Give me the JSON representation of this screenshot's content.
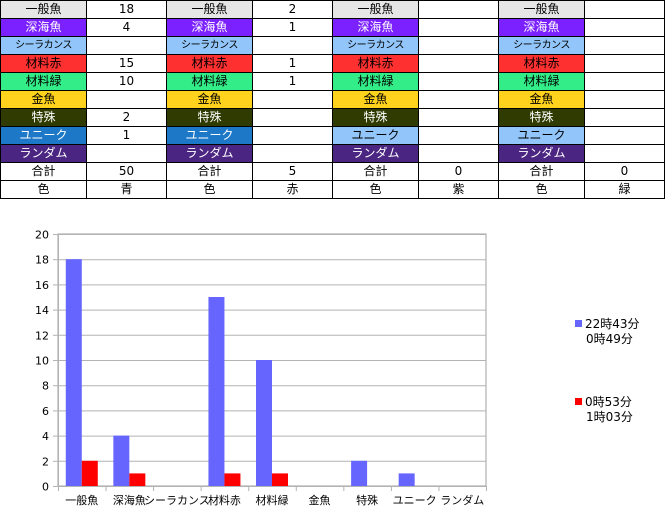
{
  "table": {
    "groups": [
      {
        "rows": [
          {
            "label": "一般魚",
            "value": "18",
            "bg": "#e6e6e6",
            "fg": "#000000"
          },
          {
            "label": "深海魚",
            "value": "4",
            "bg": "#7b21ff",
            "fg": "#ffffff"
          },
          {
            "label": "シーラカンス",
            "value": "",
            "bg": "#92c5f9",
            "fg": "#000000"
          },
          {
            "label": "材料赤",
            "value": "15",
            "bg": "#ff3030",
            "fg": "#000000"
          },
          {
            "label": "材料緑",
            "value": "10",
            "bg": "#33ee88",
            "fg": "#000000"
          },
          {
            "label": "金魚",
            "value": "",
            "bg": "#ffd21e",
            "fg": "#000000"
          },
          {
            "label": "特殊",
            "value": "2",
            "bg": "#2f3b00",
            "fg": "#ffffff"
          },
          {
            "label": "ユニーク",
            "value": "1",
            "bg": "#1e78c8",
            "fg": "#ffffff"
          },
          {
            "label": "ランダム",
            "value": "",
            "bg": "#4b2582",
            "fg": "#ffffff"
          }
        ],
        "total_label": "合計",
        "total": "50",
        "color_label": "色",
        "color": "青"
      },
      {
        "rows": [
          {
            "label": "一般魚",
            "value": "2",
            "bg": "#e6e6e6",
            "fg": "#000000"
          },
          {
            "label": "深海魚",
            "value": "1",
            "bg": "#7b21ff",
            "fg": "#ffffff"
          },
          {
            "label": "シーラカンス",
            "value": "",
            "bg": "#92c5f9",
            "fg": "#000000"
          },
          {
            "label": "材料赤",
            "value": "1",
            "bg": "#ff3030",
            "fg": "#000000"
          },
          {
            "label": "材料緑",
            "value": "1",
            "bg": "#33ee88",
            "fg": "#000000"
          },
          {
            "label": "金魚",
            "value": "",
            "bg": "#ffd21e",
            "fg": "#000000"
          },
          {
            "label": "特殊",
            "value": "",
            "bg": "#2f3b00",
            "fg": "#ffffff"
          },
          {
            "label": "ユニーク",
            "value": "",
            "bg": "#1e78c8",
            "fg": "#ffffff"
          },
          {
            "label": "ランダム",
            "value": "",
            "bg": "#4b2582",
            "fg": "#ffffff"
          }
        ],
        "total_label": "合計",
        "total": "5",
        "color_label": "色",
        "color": "赤"
      },
      {
        "rows": [
          {
            "label": "一般魚",
            "value": "",
            "bg": "#e6e6e6",
            "fg": "#000000"
          },
          {
            "label": "深海魚",
            "value": "",
            "bg": "#7b21ff",
            "fg": "#ffffff"
          },
          {
            "label": "シーラカンス",
            "value": "",
            "bg": "#92c5f9",
            "fg": "#000000"
          },
          {
            "label": "材料赤",
            "value": "",
            "bg": "#ff3030",
            "fg": "#000000"
          },
          {
            "label": "材料緑",
            "value": "",
            "bg": "#33ee88",
            "fg": "#000000"
          },
          {
            "label": "金魚",
            "value": "",
            "bg": "#ffd21e",
            "fg": "#000000"
          },
          {
            "label": "特殊",
            "value": "",
            "bg": "#2f3b00",
            "fg": "#ffffff"
          },
          {
            "label": "ユニーク",
            "value": "",
            "bg": "#92c5f9",
            "fg": "#000000"
          },
          {
            "label": "ランダム",
            "value": "",
            "bg": "#4b2582",
            "fg": "#ffffff"
          }
        ],
        "total_label": "合計",
        "total": "0",
        "color_label": "色",
        "color": "紫"
      },
      {
        "rows": [
          {
            "label": "一般魚",
            "value": "",
            "bg": "#e6e6e6",
            "fg": "#000000"
          },
          {
            "label": "深海魚",
            "value": "",
            "bg": "#7b21ff",
            "fg": "#ffffff"
          },
          {
            "label": "シーラカンス",
            "value": "",
            "bg": "#92c5f9",
            "fg": "#000000"
          },
          {
            "label": "材料赤",
            "value": "",
            "bg": "#ff3030",
            "fg": "#000000"
          },
          {
            "label": "材料緑",
            "value": "",
            "bg": "#33ee88",
            "fg": "#000000"
          },
          {
            "label": "金魚",
            "value": "",
            "bg": "#ffd21e",
            "fg": "#000000"
          },
          {
            "label": "特殊",
            "value": "",
            "bg": "#2f3b00",
            "fg": "#ffffff"
          },
          {
            "label": "ユニーク",
            "value": "",
            "bg": "#92c5f9",
            "fg": "#000000"
          },
          {
            "label": "ランダム",
            "value": "",
            "bg": "#4b2582",
            "fg": "#ffffff"
          }
        ],
        "total_label": "合計",
        "total": "0",
        "color_label": "色",
        "color": "緑"
      }
    ]
  },
  "chart_data": {
    "type": "bar",
    "categories": [
      "一般魚",
      "深海魚",
      "シーラカンス",
      "材料赤",
      "材料緑",
      "金魚",
      "特殊",
      "ユニーク",
      "ランダム"
    ],
    "series": [
      {
        "name": "22時43分\n0時49分",
        "color": "#6666ff",
        "values": [
          18,
          4,
          0,
          15,
          10,
          0,
          2,
          1,
          0
        ]
      },
      {
        "name": "0時53分\n1時03分",
        "color": "#ff0000",
        "values": [
          2,
          1,
          0,
          1,
          1,
          0,
          0,
          0,
          0
        ]
      }
    ],
    "ylim": [
      0,
      20
    ],
    "yticks": [
      0,
      2,
      4,
      6,
      8,
      10,
      12,
      14,
      16,
      18,
      20
    ],
    "grid": true,
    "legend": "right"
  }
}
